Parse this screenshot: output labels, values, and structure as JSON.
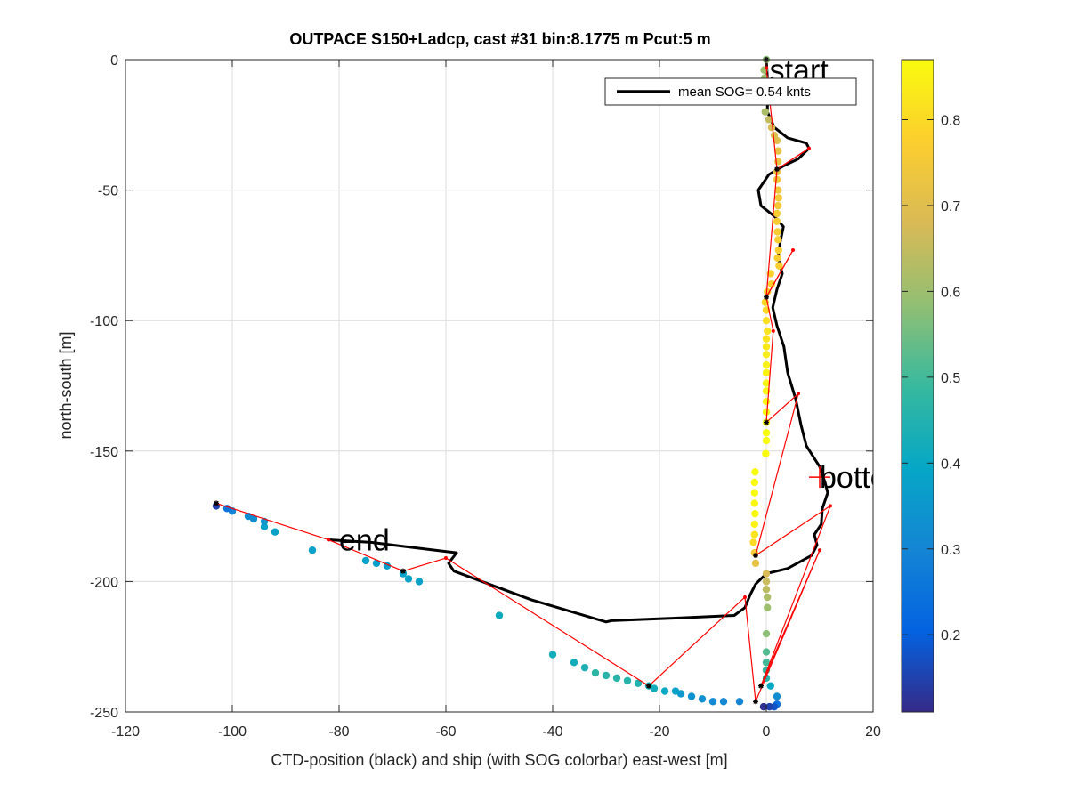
{
  "chart_data": {
    "type": "scatter",
    "title": "OUTPACE S150+Ladcp, cast #31 bin:8.1775 m  Pcut:5 m",
    "xlabel": "CTD-position (black) and ship (with SOG colorbar) east-west [m]",
    "ylabel": "north-south [m]",
    "xlim": [
      -120,
      20
    ],
    "ylim": [
      -250,
      0
    ],
    "xticks": [
      "-120",
      "-100",
      "-80",
      "-60",
      "-40",
      "-20",
      "0",
      "20"
    ],
    "yticks": [
      "0",
      "-50",
      "-100",
      "-150",
      "-200",
      "-250"
    ],
    "grid": true,
    "legend": {
      "placement": "top-right",
      "label": "mean SOG=  0.54 knts"
    },
    "colorbar": {
      "range": [
        0.11,
        0.87
      ],
      "ticks": [
        "0.2",
        "0.3",
        "0.4",
        "0.5",
        "0.6",
        "0.7",
        "0.8"
      ],
      "colormap": [
        "#352a87",
        "#0363e1",
        "#1485d4",
        "#06a7c6",
        "#38b99e",
        "#92bf73",
        "#d9ba56",
        "#fcce2e",
        "#f9fb0e"
      ]
    },
    "annotations": [
      {
        "text": "start",
        "x": 0.6,
        "y": -4
      },
      {
        "text": "botto",
        "x": 10,
        "y": -160,
        "marker": true
      },
      {
        "text": "end",
        "x": -80,
        "y": -184
      }
    ],
    "ctd_track": [
      [
        0,
        0
      ],
      [
        0.3,
        -10
      ],
      [
        0.2,
        -20
      ],
      [
        1.5,
        -26
      ],
      [
        4,
        -30
      ],
      [
        7.5,
        -32
      ],
      [
        8,
        -34
      ],
      [
        6,
        -38
      ],
      [
        3,
        -41
      ],
      [
        0.5,
        -44
      ],
      [
        -1.5,
        -50
      ],
      [
        -1,
        -56
      ],
      [
        1.5,
        -60
      ],
      [
        3.2,
        -64
      ],
      [
        2.6,
        -70
      ],
      [
        2.2,
        -76
      ],
      [
        3,
        -82
      ],
      [
        2,
        -88
      ],
      [
        1.2,
        -95
      ],
      [
        2,
        -102
      ],
      [
        3.3,
        -110
      ],
      [
        4,
        -120
      ],
      [
        5.5,
        -130
      ],
      [
        6.5,
        -140
      ],
      [
        7.5,
        -148
      ],
      [
        10,
        -156
      ],
      [
        11,
        -162
      ],
      [
        11.5,
        -166
      ],
      [
        10.5,
        -172
      ],
      [
        10.3,
        -178
      ],
      [
        9,
        -182
      ],
      [
        9.5,
        -186
      ],
      [
        8.5,
        -190
      ],
      [
        4,
        -195
      ],
      [
        0,
        -197
      ],
      [
        -2,
        -201
      ],
      [
        -3,
        -205
      ],
      [
        -4,
        -210
      ],
      [
        -6,
        -213
      ],
      [
        -17,
        -214
      ],
      [
        -29,
        -215
      ],
      [
        -30,
        -215.5
      ],
      [
        -44,
        -207
      ],
      [
        -58.5,
        -196
      ],
      [
        -59.5,
        -193
      ],
      [
        -58,
        -189
      ],
      [
        -62,
        -188
      ],
      [
        -70,
        -186
      ],
      [
        -74,
        -185
      ],
      [
        -78,
        -184.5
      ],
      [
        -82,
        -184
      ]
    ],
    "ship_track": [
      [
        0,
        0
      ],
      [
        -0.4,
        -4
      ],
      [
        -0.3,
        -7
      ],
      [
        0.2,
        -11
      ],
      [
        0,
        -16
      ],
      [
        -0.2,
        -20
      ],
      [
        0.5,
        -23
      ],
      [
        1,
        -26
      ],
      [
        1.5,
        -29
      ],
      [
        2,
        -31
      ],
      [
        2.2,
        -35
      ],
      [
        2.2,
        -39
      ],
      [
        2,
        -43
      ],
      [
        2,
        -46
      ],
      [
        2.2,
        -50
      ],
      [
        2.3,
        -53
      ],
      [
        2.2,
        -56
      ],
      [
        2,
        -59
      ],
      [
        2,
        -62
      ],
      [
        2.1,
        -66
      ],
      [
        2.2,
        -69
      ],
      [
        2.3,
        -73
      ],
      [
        2.1,
        -76
      ],
      [
        2.4,
        -79
      ],
      [
        0.8,
        -82
      ],
      [
        1,
        -86
      ],
      [
        0.2,
        -89
      ],
      [
        -0.2,
        -93
      ],
      [
        0,
        -96
      ],
      [
        0,
        -100
      ],
      [
        0.2,
        -104
      ],
      [
        0,
        -107
      ],
      [
        0,
        -110
      ],
      [
        0,
        -113
      ],
      [
        0,
        -117
      ],
      [
        0,
        -120
      ],
      [
        0,
        -124
      ],
      [
        0,
        -127
      ],
      [
        0,
        -131
      ],
      [
        0,
        -135
      ],
      [
        0,
        -139
      ],
      [
        0,
        -143
      ],
      [
        0,
        -146
      ],
      [
        -0.1,
        -151
      ],
      [
        -2.1,
        -158
      ],
      [
        -2.2,
        -162
      ],
      [
        -2.2,
        -166
      ],
      [
        -2.2,
        -170
      ],
      [
        -2.1,
        -174
      ],
      [
        -2.2,
        -178
      ],
      [
        -2.2,
        -182
      ],
      [
        -2.4,
        -185
      ],
      [
        -2.2,
        -189
      ],
      [
        -2,
        -193
      ],
      [
        0,
        -197
      ],
      [
        0,
        -200
      ],
      [
        0,
        -203
      ],
      [
        0.2,
        -206
      ],
      [
        0.2,
        -210
      ],
      [
        0,
        -220
      ],
      [
        0,
        -227
      ],
      [
        0,
        -231
      ],
      [
        0,
        -234
      ],
      [
        0,
        -237
      ],
      [
        0.8,
        -240
      ],
      [
        2,
        -244
      ],
      [
        2,
        -247
      ],
      [
        1.5,
        -248
      ],
      [
        0.6,
        -248
      ],
      [
        -0.5,
        -248
      ],
      [
        -5,
        -246
      ],
      [
        -8,
        -246
      ],
      [
        -10,
        -246
      ],
      [
        -12,
        -245
      ],
      [
        -14,
        -244
      ],
      [
        -16,
        -243
      ],
      [
        -17,
        -242
      ],
      [
        -19,
        -242
      ],
      [
        -21,
        -241
      ],
      [
        -22,
        -240
      ],
      [
        -24,
        -239
      ],
      [
        -26,
        -238
      ],
      [
        -28,
        -237
      ],
      [
        -30,
        -236
      ],
      [
        -32,
        -235
      ],
      [
        -34,
        -233
      ],
      [
        -36,
        -231
      ],
      [
        -40,
        -228
      ],
      [
        -50,
        -213
      ],
      [
        -65,
        -200
      ],
      [
        -67,
        -199
      ],
      [
        -68,
        -197
      ],
      [
        -71,
        -194
      ],
      [
        -73,
        -193
      ],
      [
        -75,
        -192
      ],
      [
        -85,
        -188
      ],
      [
        -92,
        -181
      ],
      [
        -94,
        -179
      ],
      [
        -94,
        -177
      ],
      [
        -96,
        -176
      ],
      [
        -97,
        -175
      ],
      [
        -100,
        -173
      ],
      [
        -101,
        -172
      ],
      [
        -103,
        -171
      ]
    ],
    "ship_sog": [
      0.58,
      0.6,
      0.6,
      0.6,
      0.6,
      0.62,
      0.65,
      0.68,
      0.7,
      0.7,
      0.72,
      0.72,
      0.73,
      0.74,
      0.74,
      0.75,
      0.75,
      0.76,
      0.76,
      0.76,
      0.77,
      0.77,
      0.77,
      0.77,
      0.78,
      0.78,
      0.78,
      0.79,
      0.8,
      0.81,
      0.82,
      0.82,
      0.83,
      0.84,
      0.85,
      0.85,
      0.86,
      0.86,
      0.86,
      0.87,
      0.87,
      0.87,
      0.87,
      0.87,
      0.87,
      0.87,
      0.87,
      0.86,
      0.86,
      0.85,
      0.82,
      0.8,
      0.76,
      0.72,
      0.68,
      0.66,
      0.64,
      0.62,
      0.6,
      0.58,
      0.52,
      0.5,
      0.48,
      0.46,
      0.4,
      0.32,
      0.25,
      0.18,
      0.15,
      0.12,
      0.3,
      0.31,
      0.31,
      0.33,
      0.34,
      0.35,
      0.38,
      0.4,
      0.42,
      0.44,
      0.45,
      0.46,
      0.46,
      0.46,
      0.47,
      0.44,
      0.42,
      0.42,
      0.41,
      0.38,
      0.38,
      0.38,
      0.37,
      0.37,
      0.38,
      0.38,
      0.38,
      0.38,
      0.35,
      0.32,
      0.32,
      0.3,
      0.25,
      0.15
    ],
    "red_segments": [
      [
        [
          0,
          0
        ],
        [
          0,
          -3
        ]
      ],
      [
        [
          0,
          -3
        ],
        [
          2,
          -42
        ]
      ],
      [
        [
          2,
          -42
        ],
        [
          8,
          -34
        ]
      ],
      [
        [
          8,
          -34
        ],
        [
          2,
          -42
        ]
      ],
      [
        [
          2,
          -42
        ],
        [
          0,
          -91
        ]
      ],
      [
        [
          0,
          -91
        ],
        [
          5,
          -73
        ]
      ],
      [
        [
          5,
          -73
        ],
        [
          0,
          -91
        ]
      ],
      [
        [
          0,
          -91
        ],
        [
          1.3,
          -104
        ]
      ],
      [
        [
          1.3,
          -104
        ],
        [
          0,
          -139
        ]
      ],
      [
        [
          0,
          -139
        ],
        [
          6,
          -128
        ]
      ],
      [
        [
          6,
          -128
        ],
        [
          -2,
          -190
        ]
      ],
      [
        [
          -2,
          -190
        ],
        [
          12,
          -171
        ]
      ],
      [
        [
          12,
          -171
        ],
        [
          -1,
          -240
        ]
      ],
      [
        [
          -1,
          -240
        ],
        [
          10,
          -188
        ]
      ],
      [
        [
          10,
          -188
        ],
        [
          -2,
          -246
        ]
      ],
      [
        [
          -2,
          -246
        ],
        [
          -4,
          -206
        ]
      ],
      [
        [
          -4,
          -206
        ],
        [
          -22,
          -240
        ]
      ],
      [
        [
          -22,
          -240
        ],
        [
          -60,
          -191
        ]
      ],
      [
        [
          -60,
          -191
        ],
        [
          -68,
          -196
        ]
      ],
      [
        [
          -68,
          -196
        ],
        [
          -82,
          -184
        ]
      ],
      [
        [
          -82,
          -184
        ],
        [
          -103,
          -170
        ]
      ]
    ],
    "black_markers": [
      [
        0,
        0
      ],
      [
        2,
        -42
      ],
      [
        0,
        -91
      ],
      [
        0,
        -139
      ],
      [
        -2,
        -190
      ],
      [
        -1,
        -240
      ],
      [
        -2,
        -246
      ],
      [
        -22,
        -240
      ],
      [
        -68,
        -196
      ],
      [
        -103,
        -170
      ]
    ]
  }
}
